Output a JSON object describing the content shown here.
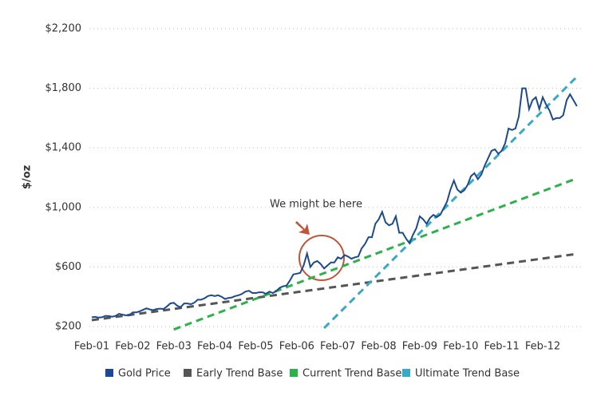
{
  "chart_data": {
    "type": "line",
    "y_label": "$/oz",
    "annotation": "We might be here",
    "x": [
      "Feb-01",
      "Mar-01",
      "Apr-01",
      "May-01",
      "Jun-01",
      "Jul-01",
      "Aug-01",
      "Sep-01",
      "Oct-01",
      "Nov-01",
      "Dec-01",
      "Jan-02",
      "Feb-02",
      "Mar-02",
      "Apr-02",
      "May-02",
      "Jun-02",
      "Jul-02",
      "Aug-02",
      "Sep-02",
      "Oct-02",
      "Nov-02",
      "Dec-02",
      "Jan-03",
      "Feb-03",
      "Mar-03",
      "Apr-03",
      "May-03",
      "Jun-03",
      "Jul-03",
      "Aug-03",
      "Sep-03",
      "Oct-03",
      "Nov-03",
      "Dec-03",
      "Jan-04",
      "Feb-04",
      "Mar-04",
      "Apr-04",
      "May-04",
      "Jun-04",
      "Jul-04",
      "Aug-04",
      "Sep-04",
      "Oct-04",
      "Nov-04",
      "Dec-04",
      "Jan-05",
      "Feb-05",
      "Mar-05",
      "Apr-05",
      "May-05",
      "Jun-05",
      "Jul-05",
      "Aug-05",
      "Sep-05",
      "Oct-05",
      "Nov-05",
      "Dec-05",
      "Jan-06",
      "Feb-06",
      "Mar-06",
      "Apr-06",
      "May-06",
      "Jun-06",
      "Jul-06",
      "Aug-06",
      "Sep-06",
      "Oct-06",
      "Nov-06",
      "Dec-06",
      "Jan-07",
      "Feb-07",
      "Mar-07",
      "Apr-07",
      "May-07",
      "Jun-07",
      "Jul-07",
      "Aug-07",
      "Sep-07",
      "Oct-07",
      "Nov-07",
      "Dec-07",
      "Jan-08",
      "Feb-08",
      "Mar-08",
      "Apr-08",
      "May-08",
      "Jun-08",
      "Jul-08",
      "Aug-08",
      "Sep-08",
      "Oct-08",
      "Nov-08",
      "Dec-08",
      "Jan-09",
      "Feb-09",
      "Mar-09",
      "Apr-09",
      "May-09",
      "Jun-09",
      "Jul-09",
      "Aug-09",
      "Sep-09",
      "Oct-09",
      "Nov-09",
      "Dec-09",
      "Jan-10",
      "Feb-10",
      "Mar-10",
      "Apr-10",
      "May-10",
      "Jun-10",
      "Jul-10",
      "Aug-10",
      "Sep-10",
      "Oct-10",
      "Nov-10",
      "Dec-10",
      "Jan-11",
      "Feb-11",
      "Mar-11",
      "Apr-11",
      "May-11",
      "Jun-11",
      "Jul-11",
      "Aug-11",
      "Sep-11",
      "Oct-11",
      "Nov-11",
      "Dec-11",
      "Jan-12",
      "Feb-12",
      "Mar-12",
      "Apr-12",
      "May-12",
      "Jun-12",
      "Jul-12",
      "Aug-12",
      "Sep-12",
      "Oct-12",
      "Nov-12",
      "Dec-12"
    ],
    "series": [
      {
        "name": "Gold Price",
        "color": "#1d4a8f",
        "style": "solid",
        "values": [
          262,
          265,
          260,
          262,
          272,
          270,
          266,
          272,
          285,
          280,
          275,
          278,
          295,
          295,
          302,
          312,
          322,
          315,
          310,
          318,
          320,
          318,
          335,
          355,
          360,
          340,
          330,
          355,
          355,
          350,
          360,
          380,
          380,
          390,
          405,
          410,
          405,
          410,
          400,
          385,
          392,
          395,
          405,
          410,
          420,
          435,
          440,
          425,
          425,
          430,
          430,
          420,
          435,
          425,
          438,
          460,
          470,
          475,
          510,
          550,
          555,
          560,
          610,
          690,
          600,
          630,
          640,
          620,
          590,
          610,
          630,
          630,
          665,
          655,
          680,
          670,
          655,
          665,
          670,
          725,
          755,
          800,
          800,
          890,
          920,
          970,
          900,
          880,
          890,
          940,
          830,
          830,
          790,
          760,
          815,
          860,
          940,
          920,
          890,
          930,
          950,
          935,
          950,
          995,
          1040,
          1120,
          1180,
          1120,
          1100,
          1115,
          1150,
          1210,
          1230,
          1190,
          1220,
          1280,
          1330,
          1380,
          1390,
          1360,
          1380,
          1430,
          1530,
          1520,
          1530,
          1610,
          1800,
          1800,
          1660,
          1720,
          1740,
          1660,
          1740,
          1690,
          1650,
          1590,
          1600,
          1600,
          1620,
          1720,
          1760,
          1720,
          1680
        ]
      },
      {
        "name": "Early Trend Base",
        "color": "#555555",
        "style": "dashed",
        "x": [
          "Feb-01",
          "Dec-12"
        ],
        "values": [
          243,
          688
        ]
      },
      {
        "name": "Current Trend Base",
        "color": "#2cb24a",
        "style": "dashed",
        "x": [
          "Feb-03",
          "Dec-12"
        ],
        "values": [
          180,
          1195
        ]
      },
      {
        "name": "Ultimate Trend Base",
        "color": "#3aa9c6",
        "style": "dashed",
        "x": [
          "Oct-06",
          "Dec-12"
        ],
        "values": [
          190,
          1878
        ]
      }
    ],
    "ylim": [
      200,
      2200
    ],
    "yticks": [
      {
        "value": 200,
        "label": "$200"
      },
      {
        "value": 600,
        "label": "$600"
      },
      {
        "value": 1000,
        "label": "$1,000"
      },
      {
        "value": 1400,
        "label": "$1,400"
      },
      {
        "value": 1800,
        "label": "$1,800"
      },
      {
        "value": 2200,
        "label": "$2,200"
      }
    ],
    "xtick_every": 12,
    "grid": true
  }
}
